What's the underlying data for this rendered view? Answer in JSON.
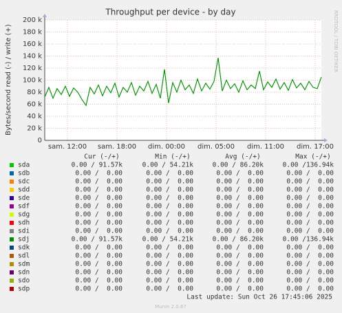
{
  "chart_data": {
    "type": "line",
    "title": "Throughput per device - by day",
    "y_label": "Bytes/second read (-) / write (+)",
    "side_text": "RRDTOOL / TOBI OETIKER",
    "grid": true,
    "xlim": [
      0,
      33.5
    ],
    "xticks": [
      {
        "value": 2.75,
        "label": "sam. 12:00"
      },
      {
        "value": 8.75,
        "label": "sam. 18:00"
      },
      {
        "value": 14.75,
        "label": "dim. 00:00"
      },
      {
        "value": 20.75,
        "label": "dim. 05:00"
      },
      {
        "value": 26.75,
        "label": "dim. 11:00"
      },
      {
        "value": 32.75,
        "label": "dim. 17:00"
      }
    ],
    "ylim": [
      0,
      200000
    ],
    "yticks": [
      0,
      {
        "value": 20000,
        "label": "20 k"
      },
      {
        "value": 40000,
        "label": "40 k"
      },
      {
        "value": 60000,
        "label": "60 k"
      },
      {
        "value": 80000,
        "label": "80 k"
      },
      {
        "value": 100000,
        "label": "100 k"
      },
      {
        "value": 120000,
        "label": "120 k"
      },
      {
        "value": 140000,
        "label": "140 k"
      },
      {
        "value": 160000,
        "label": "160 k"
      },
      {
        "value": 180000,
        "label": "180 k"
      },
      {
        "value": 200000,
        "label": "200 k"
      }
    ],
    "x": [
      0,
      0.5,
      1,
      1.5,
      2,
      2.5,
      3,
      3.5,
      4,
      4.5,
      5,
      5.5,
      6,
      6.5,
      7,
      7.5,
      8,
      8.5,
      9,
      9.5,
      10,
      10.5,
      11,
      11.5,
      12,
      12.5,
      13,
      13.5,
      14,
      14.5,
      15,
      15.5,
      16,
      16.5,
      17,
      17.5,
      18,
      18.5,
      19,
      19.5,
      20,
      20.5,
      21,
      21.5,
      22,
      22.5,
      23,
      23.5,
      24,
      24.5,
      25,
      25.5,
      26,
      26.5,
      27,
      27.5,
      28,
      28.5,
      29,
      29.5,
      30,
      30.5,
      31,
      31.5,
      32,
      32.5,
      33,
      33.5
    ],
    "columns": [
      "Cur (-/+)",
      "Min (-/+)",
      "Avg (-/+)",
      "Max (-/+)"
    ],
    "series": [
      {
        "name": "sda",
        "color": "#00cc00",
        "stats": [
          "0.00 / 91.57k",
          "0.00 / 54.21k",
          "0.00 / 86.20k",
          "0.00 /136.94k"
        ],
        "values": [
          72000,
          88000,
          70000,
          86000,
          76000,
          90000,
          73000,
          87000,
          80000,
          68000,
          58000,
          88000,
          77000,
          92000,
          74000,
          90000,
          79000,
          95000,
          72000,
          88000,
          80000,
          96000,
          75000,
          90000,
          82000,
          98000,
          78000,
          93000,
          70000,
          118000,
          62000,
          96000,
          80000,
          100000,
          84000,
          92000,
          78000,
          102000,
          82000,
          95000,
          85000,
          98000,
          137000,
          82000,
          100000,
          86000,
          94000,
          80000,
          99000,
          84000,
          92000,
          86000,
          115000,
          84000,
          97000,
          88000,
          102000,
          85000,
          96000,
          83000,
          101000,
          87000,
          95000,
          84000,
          98000,
          88000,
          86000,
          105000
        ]
      },
      {
        "name": "sdb",
        "color": "#0066b3",
        "stats": [
          "0.00 /  0.00",
          "0.00 /  0.00",
          "0.00 /  0.00",
          "0.00 /  0.00"
        ]
      },
      {
        "name": "sdc",
        "color": "#ff8000",
        "stats": [
          "0.00 /  0.00",
          "0.00 /  0.00",
          "0.00 /  0.00",
          "0.00 /  0.00"
        ]
      },
      {
        "name": "sdd",
        "color": "#ffcc00",
        "stats": [
          "0.00 /  0.00",
          "0.00 /  0.00",
          "0.00 /  0.00",
          "0.00 /  0.00"
        ]
      },
      {
        "name": "sde",
        "color": "#330099",
        "stats": [
          "0.00 /  0.00",
          "0.00 /  0.00",
          "0.00 /  0.00",
          "0.00 /  0.00"
        ]
      },
      {
        "name": "sdf",
        "color": "#990099",
        "stats": [
          "0.00 /  0.00",
          "0.00 /  0.00",
          "0.00 /  0.00",
          "0.00 /  0.00"
        ]
      },
      {
        "name": "sdg",
        "color": "#ccff00",
        "stats": [
          "0.00 /  0.00",
          "0.00 /  0.00",
          "0.00 /  0.00",
          "0.00 /  0.00"
        ]
      },
      {
        "name": "sdh",
        "color": "#ff0000",
        "stats": [
          "0.00 /  0.00",
          "0.00 /  0.00",
          "0.00 /  0.00",
          "0.00 /  0.00"
        ]
      },
      {
        "name": "sdi",
        "color": "#808080",
        "stats": [
          "0.00 /  0.00",
          "0.00 /  0.00",
          "0.00 /  0.00",
          "0.00 /  0.00"
        ]
      },
      {
        "name": "sdj",
        "color": "#008f00",
        "stats": [
          "0.00 / 91.57k",
          "0.00 / 54.21k",
          "0.00 / 86.20k",
          "0.00 /136.94k"
        ],
        "values": [
          72000,
          88000,
          70000,
          86000,
          76000,
          90000,
          73000,
          87000,
          80000,
          68000,
          58000,
          88000,
          77000,
          92000,
          74000,
          90000,
          79000,
          95000,
          72000,
          88000,
          80000,
          96000,
          75000,
          90000,
          82000,
          98000,
          78000,
          93000,
          70000,
          118000,
          62000,
          96000,
          80000,
          100000,
          84000,
          92000,
          78000,
          102000,
          82000,
          95000,
          85000,
          98000,
          137000,
          82000,
          100000,
          86000,
          94000,
          80000,
          99000,
          84000,
          92000,
          86000,
          115000,
          84000,
          97000,
          88000,
          102000,
          85000,
          96000,
          83000,
          101000,
          87000,
          95000,
          84000,
          98000,
          88000,
          86000,
          105000
        ]
      },
      {
        "name": "sdk",
        "color": "#00487d",
        "stats": [
          "0.00 /  0.00",
          "0.00 /  0.00",
          "0.00 /  0.00",
          "0.00 /  0.00"
        ]
      },
      {
        "name": "sdl",
        "color": "#b35a00",
        "stats": [
          "0.00 /  0.00",
          "0.00 /  0.00",
          "0.00 /  0.00",
          "0.00 /  0.00"
        ]
      },
      {
        "name": "sdm",
        "color": "#b38f00",
        "stats": [
          "0.00 /  0.00",
          "0.00 /  0.00",
          "0.00 /  0.00",
          "0.00 /  0.00"
        ]
      },
      {
        "name": "sdn",
        "color": "#6b006b",
        "stats": [
          "0.00 /  0.00",
          "0.00 /  0.00",
          "0.00 /  0.00",
          "0.00 /  0.00"
        ]
      },
      {
        "name": "sdo",
        "color": "#8fb300",
        "stats": [
          "0.00 /  0.00",
          "0.00 /  0.00",
          "0.00 /  0.00",
          "0.00 /  0.00"
        ]
      },
      {
        "name": "sdp",
        "color": "#b30000",
        "stats": [
          "0.00 /  0.00",
          "0.00 /  0.00",
          "0.00 /  0.00",
          "0.00 /  0.00"
        ]
      }
    ],
    "last_update": "Last update: Sun Oct 26 17:45:06 2025",
    "footer": "Munin 2.0.67"
  }
}
